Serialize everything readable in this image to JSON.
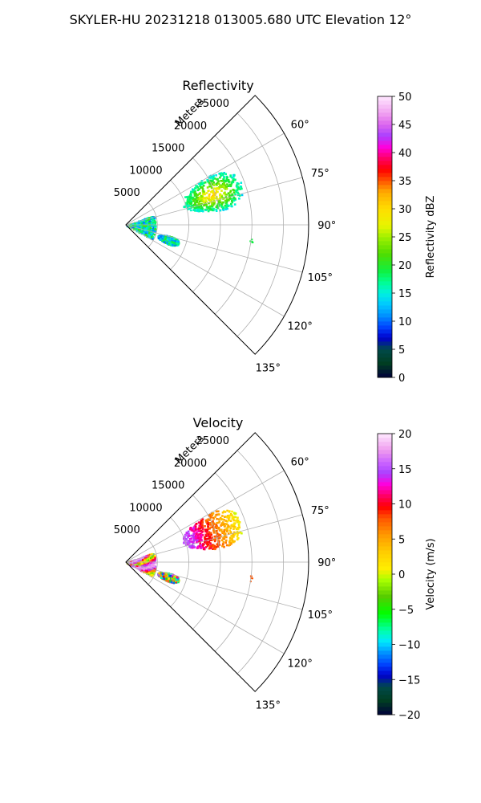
{
  "suptitle": "SKYLER-HU  20231218  013005.680 UTC Elevation 12°",
  "chart_data": [
    {
      "type": "heatmap",
      "subtype": "polar-sector-ppi",
      "title": "Reflectivity",
      "radial_axis_label": "Meters",
      "r_ticks": [
        "5000",
        "10000",
        "15000",
        "20000",
        "25000"
      ],
      "r_tick_values": [
        5000,
        10000,
        15000,
        20000,
        25000
      ],
      "rlim": [
        0,
        29000
      ],
      "theta_ticks": [
        "60°",
        "75°",
        "90°",
        "105°",
        "120°",
        "135°"
      ],
      "theta_tick_values": [
        60,
        75,
        90,
        105,
        120,
        135
      ],
      "thetalim": [
        45,
        135
      ],
      "colorbar": {
        "label": "Reflectivity dBZ",
        "range": [
          0,
          50
        ],
        "ticks": [
          "0",
          "5",
          "10",
          "15",
          "20",
          "25",
          "30",
          "35",
          "40",
          "45",
          "50"
        ]
      },
      "features": [
        {
          "kind": "clutter-fan",
          "theta_range": [
            70,
            118
          ],
          "r_range": [
            0,
            4600
          ],
          "value_range": [
            10,
            22
          ]
        },
        {
          "kind": "cell",
          "theta_center": 70,
          "r_center": 14500,
          "theta_span": 22,
          "r_span": 10000,
          "value_range": [
            15,
            33
          ],
          "core_value": 32
        },
        {
          "kind": "cell",
          "theta_center": 109,
          "r_center": 7000,
          "theta_span": 10,
          "r_span": 3500,
          "value_range": [
            10,
            22
          ]
        },
        {
          "kind": "speck",
          "theta": 97,
          "r": 20000,
          "value": 19
        }
      ],
      "grid": true
    },
    {
      "type": "heatmap",
      "subtype": "polar-sector-ppi",
      "title": "Velocity",
      "radial_axis_label": "Meters",
      "r_ticks": [
        "5000",
        "10000",
        "15000",
        "20000",
        "25000"
      ],
      "r_tick_values": [
        5000,
        10000,
        15000,
        20000,
        25000
      ],
      "rlim": [
        0,
        29000
      ],
      "theta_ticks": [
        "60°",
        "75°",
        "90°",
        "105°",
        "120°",
        "135°"
      ],
      "theta_tick_values": [
        60,
        75,
        90,
        105,
        120,
        135
      ],
      "thetalim": [
        45,
        135
      ],
      "colorbar": {
        "label": "Velocity (m/s)",
        "range": [
          -20,
          20
        ],
        "ticks": [
          "−20",
          "−15",
          "−10",
          "−5",
          "0",
          "5",
          "10",
          "15",
          "20"
        ]
      },
      "features": [
        {
          "kind": "clutter-fan",
          "theta_range": [
            70,
            118
          ],
          "r_range": [
            0,
            4600
          ],
          "value_range": [
            -12,
            18
          ]
        },
        {
          "kind": "cell",
          "theta_center": 70,
          "r_center": 14500,
          "theta_span": 22,
          "r_span": 10000,
          "value_range": [
            0,
            16
          ]
        },
        {
          "kind": "cell",
          "theta_center": 109,
          "r_center": 7000,
          "theta_span": 10,
          "r_span": 3500,
          "value_range": [
            -14,
            16
          ]
        },
        {
          "kind": "speck",
          "theta": 97,
          "r": 20000,
          "value": 8
        }
      ],
      "grid": true
    }
  ]
}
